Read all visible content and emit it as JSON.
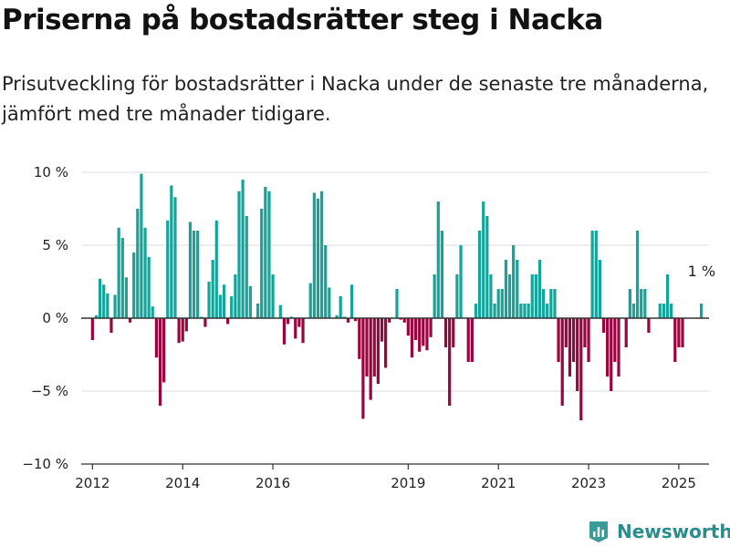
{
  "header": {
    "title": "Priserna på bostadsrätter steg i Nacka",
    "subtitle": "Prisutveckling för bostadsrätter i Nacka under de senaste tre månaderna, jämfört med tre månader tidigare."
  },
  "brand": {
    "name": "Newsworthy",
    "icon": "bar-chart-logo-icon",
    "color": "#3a9a9a"
  },
  "chart_data": {
    "type": "bar",
    "title": "Priserna på bostadsrätter steg i Nacka",
    "xlabel": "",
    "ylabel": "",
    "ylim": [
      -10,
      10
    ],
    "yticks": [
      10,
      5,
      0,
      -5,
      -10
    ],
    "ytick_labels": [
      "10 %",
      "5 %",
      "0 %",
      "−5 %",
      "−10 %"
    ],
    "xlim": [
      2011.75,
      2025.67
    ],
    "xticks": [
      2012,
      2014,
      2016,
      2019,
      2021,
      2023,
      2025
    ],
    "xtick_labels": [
      "2012",
      "2014",
      "2016",
      "2019",
      "2021",
      "2023",
      "2025"
    ],
    "grid": true,
    "positive_color": "#15a39a",
    "negative_color": "#99053f",
    "annotation": {
      "text": "1 %",
      "x": 2025.5,
      "y": 1
    },
    "series": [
      {
        "x": [
          2012.0,
          2012.083,
          2012.167,
          2012.25,
          2012.333,
          2012.417,
          2012.5,
          2012.583,
          2012.667,
          2012.75,
          2012.833,
          2012.917,
          2013.0,
          2013.083,
          2013.167,
          2013.25,
          2013.333,
          2013.417,
          2013.5,
          2013.583,
          2013.667,
          2013.75,
          2013.833,
          2013.917,
          2014.0,
          2014.083,
          2014.167,
          2014.25,
          2014.333,
          2014.417,
          2014.5,
          2014.583,
          2014.667,
          2014.75,
          2014.833,
          2014.917,
          2015.0,
          2015.083,
          2015.167,
          2015.25,
          2015.333,
          2015.417,
          2015.5,
          2015.583,
          2015.667,
          2015.75,
          2015.833,
          2015.917,
          2016.0,
          2016.083,
          2016.167,
          2016.25,
          2016.333,
          2016.417,
          2016.5,
          2016.583,
          2016.667,
          2016.75,
          2016.833,
          2016.917,
          2017.0,
          2017.083,
          2017.167,
          2017.25,
          2017.333,
          2017.417,
          2017.5,
          2017.583,
          2017.667,
          2017.75,
          2017.833,
          2017.917,
          2018.0,
          2018.083,
          2018.167,
          2018.25,
          2018.333,
          2018.417,
          2018.5,
          2018.583,
          2018.667,
          2018.75,
          2018.833,
          2018.917,
          2019.0,
          2019.083,
          2019.167,
          2019.25,
          2019.333,
          2019.417,
          2019.5,
          2019.583,
          2019.667,
          2019.75,
          2019.833,
          2019.917,
          2020.0,
          2020.083,
          2020.167,
          2020.25,
          2020.333,
          2020.417,
          2020.5,
          2020.583,
          2020.667,
          2020.75,
          2020.833,
          2020.917,
          2021.0,
          2021.083,
          2021.167,
          2021.25,
          2021.333,
          2021.417,
          2021.5,
          2021.583,
          2021.667,
          2021.75,
          2021.833,
          2021.917,
          2022.0,
          2022.083,
          2022.167,
          2022.25,
          2022.333,
          2022.417,
          2022.5,
          2022.583,
          2022.667,
          2022.75,
          2022.833,
          2022.917,
          2023.0,
          2023.083,
          2023.167,
          2023.25,
          2023.333,
          2023.417,
          2023.5,
          2023.583,
          2023.667,
          2023.75,
          2023.833,
          2023.917,
          2024.0,
          2024.083,
          2024.167,
          2024.25,
          2024.333,
          2024.417,
          2024.5,
          2024.583,
          2024.667,
          2024.75,
          2024.833,
          2024.917,
          2025.0,
          2025.083,
          2025.167,
          2025.25,
          2025.333,
          2025.417,
          2025.5
        ],
        "values": [
          -1.5,
          0.2,
          2.7,
          2.3,
          1.7,
          -1.0,
          1.6,
          6.2,
          5.5,
          2.8,
          -0.3,
          4.5,
          7.5,
          9.9,
          6.2,
          4.2,
          0.8,
          -2.7,
          -6.0,
          -4.4,
          6.7,
          9.1,
          8.3,
          -1.7,
          -1.6,
          -0.9,
          6.6,
          6.0,
          6.0,
          0.1,
          -0.6,
          2.5,
          4.0,
          6.7,
          1.6,
          2.3,
          -0.4,
          1.5,
          3.0,
          8.7,
          9.5,
          7.0,
          2.2,
          0.0,
          1.0,
          7.5,
          9.0,
          8.7,
          3.0,
          0.0,
          0.9,
          -1.8,
          -0.4,
          0.1,
          -1.4,
          -0.6,
          -1.7,
          0.0,
          2.4,
          8.6,
          8.2,
          8.7,
          5.0,
          2.1,
          0.0,
          0.2,
          1.5,
          0.1,
          -0.3,
          2.3,
          -0.2,
          -2.8,
          -6.9,
          -4.0,
          -5.6,
          -4.0,
          -4.5,
          -1.6,
          -3.4,
          -0.3,
          0.0,
          2.0,
          -0.1,
          -0.3,
          -1.2,
          -2.7,
          -1.5,
          -2.3,
          -1.9,
          -2.2,
          -1.3,
          3.0,
          8.0,
          6.0,
          -2.0,
          -6.0,
          -2.0,
          3.0,
          5.0,
          0.0,
          -3.0,
          -3.0,
          1.0,
          6.0,
          8.0,
          7.0,
          3.0,
          1.0,
          2.0,
          2.0,
          4.0,
          3.0,
          5.0,
          4.0,
          1.0,
          1.0,
          1.0,
          3.0,
          3.0,
          4.0,
          2.0,
          1.0,
          2.0,
          2.0,
          -3.0,
          -6.0,
          -2.0,
          -4.0,
          -3.0,
          -5.0,
          -7.0,
          -2.0,
          -3.0,
          6.0,
          6.0,
          4.0,
          -1.0,
          -4.0,
          -5.0,
          -3.0,
          -4.0,
          0.0,
          -2.0,
          2.0,
          1.0,
          6.0,
          2.0,
          2.0,
          -1.0,
          0.0,
          0.0,
          1.0,
          1.0,
          3.0,
          1.0,
          -3.0,
          -2.0,
          -2.0,
          0.0,
          0.0,
          0.0,
          0.0,
          1.0
        ]
      }
    ]
  }
}
